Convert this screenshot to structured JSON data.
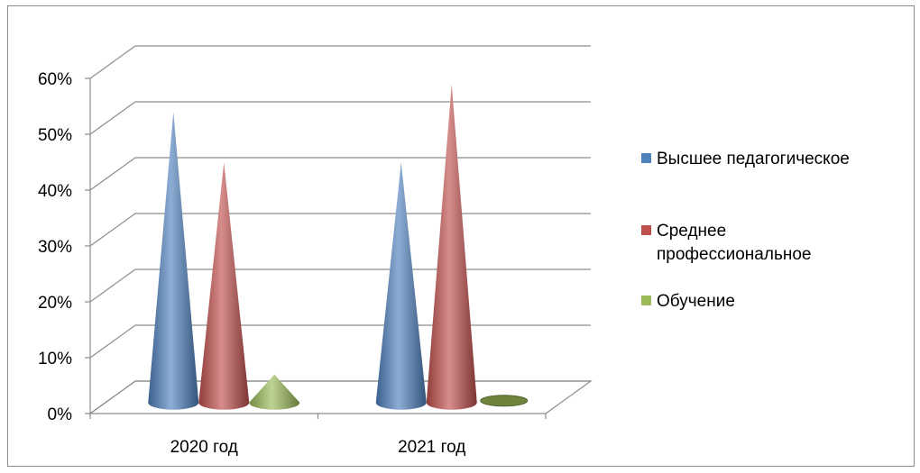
{
  "chart_data": {
    "type": "bar",
    "style": "3d-cone",
    "categories": [
      "2020 год",
      "2021 год"
    ],
    "series": [
      {
        "name": "Высшее педагогическое",
        "values": [
          52,
          43
        ],
        "color": "#4f81bd"
      },
      {
        "name": "Среднее профессиональное",
        "values": [
          43,
          57
        ],
        "color": "#c0504d"
      },
      {
        "name": "Обучение",
        "values": [
          5,
          0
        ],
        "color": "#9bbb59"
      }
    ],
    "y_ticks": [
      "0%",
      "10%",
      "20%",
      "30%",
      "40%",
      "50%",
      "60%"
    ],
    "ylim": [
      0,
      60
    ],
    "unit": "%",
    "grid": true,
    "legend_position": "right"
  }
}
